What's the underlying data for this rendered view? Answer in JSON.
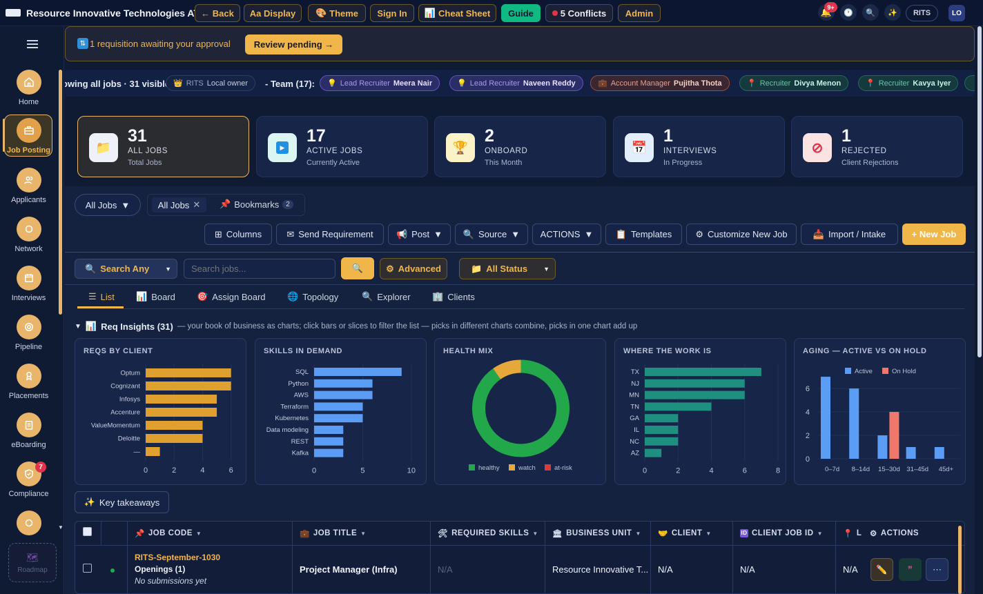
{
  "app": {
    "title": "Resource Innovative Technologies ATS"
  },
  "topbar": {
    "back": "← Back",
    "display": "Aa Display",
    "theme": "Theme",
    "signin": "Sign In",
    "cheatsheet": "Cheat Sheet",
    "guide": "Guide",
    "conflicts": "5 Conflicts",
    "admin": "Admin",
    "notif_badge": "9+",
    "org": "RITS",
    "avatar": "LO"
  },
  "sidebar": {
    "items": [
      {
        "label": "Home",
        "icon": "home-icon"
      },
      {
        "label": "Job Posting",
        "icon": "briefcase-icon",
        "active": true
      },
      {
        "label": "Applicants",
        "icon": "users-icon"
      },
      {
        "label": "Network",
        "icon": "circle-icon"
      },
      {
        "label": "Interviews",
        "icon": "calendar-icon"
      },
      {
        "label": "Pipeline",
        "icon": "target-icon"
      },
      {
        "label": "Placements",
        "icon": "award-icon"
      },
      {
        "label": "eBoarding",
        "icon": "clipboard-icon"
      },
      {
        "label": "Compliance",
        "icon": "shield-icon",
        "badge": "7"
      }
    ],
    "roadmap": "Roadmap"
  },
  "banner": {
    "text": "1 requisition awaiting your approval",
    "button": "Review pending →"
  },
  "team_strip": {
    "showing": "owing all jobs · 31 visible",
    "owner_org": "RITS",
    "owner_label": "Local owner",
    "team": "- Team (17):",
    "members": [
      {
        "role": "Lead Recruiter",
        "name": "Meera Nair"
      },
      {
        "role": "Lead Recruiter",
        "name": "Naveen Reddy"
      },
      {
        "role": "Account Manager",
        "name": "Pujitha Thota"
      },
      {
        "role": "Recruiter",
        "name": "Divya Menon"
      },
      {
        "role": "Recruiter",
        "name": "Kavya Iyer"
      }
    ]
  },
  "stats": [
    {
      "num": "31",
      "label": "ALL JOBS",
      "sub": "Total Jobs",
      "icon": "folder-icon"
    },
    {
      "num": "17",
      "label": "ACTIVE JOBS",
      "sub": "Currently Active",
      "icon": "play-icon"
    },
    {
      "num": "2",
      "label": "ONBOARD",
      "sub": "This Month",
      "icon": "trophy-icon"
    },
    {
      "num": "1",
      "label": "INTERVIEWS",
      "sub": "In Progress",
      "icon": "calendar-icon"
    },
    {
      "num": "1",
      "label": "REJECTED",
      "sub": "Client Rejections",
      "icon": "ban-icon"
    }
  ],
  "views": {
    "dropdown": "All Jobs",
    "tab_all": "All Jobs",
    "bookmarks": "Bookmarks",
    "bookmarks_count": "2"
  },
  "toolbar": {
    "columns": "Columns",
    "send_requirement": "Send Requirement",
    "post": "Post",
    "source": "Source",
    "actions": "ACTIONS",
    "templates": "Templates",
    "customize": "Customize New Job",
    "import": "Import / Intake",
    "new_job": "+ New Job"
  },
  "search": {
    "scope": "Search Any",
    "placeholder": "Search jobs...",
    "advanced": "Advanced",
    "status": "All Status"
  },
  "tabs": [
    "List",
    "Board",
    "Assign Board",
    "Topology",
    "Explorer",
    "Clients"
  ],
  "insights": {
    "title": "Req Insights (31)",
    "desc": "— your book of business as charts; click bars or slices to filter the list — picks in different charts combine, picks in one chart add up"
  },
  "chart_data": [
    {
      "type": "bar",
      "title": "REQS BY CLIENT",
      "orientation": "horizontal",
      "categories": [
        "Optum",
        "Cognizant",
        "Infosys",
        "Accenture",
        "ValueMomentum",
        "Deloitte",
        "—"
      ],
      "values": [
        6,
        6,
        5,
        5,
        4,
        4,
        1
      ],
      "xticks": [
        0,
        2,
        4,
        6
      ],
      "xlim": [
        0,
        6.5
      ],
      "color": "#e0a030"
    },
    {
      "type": "bar",
      "title": "SKILLS IN DEMAND",
      "orientation": "horizontal",
      "categories": [
        "SQL",
        "Python",
        "AWS",
        "Terraform",
        "Kubernetes",
        "Data modeling",
        "REST",
        "Kafka"
      ],
      "values": [
        9,
        6,
        6,
        5,
        5,
        3,
        3,
        3
      ],
      "xticks": [
        0,
        5,
        10
      ],
      "xlim": [
        0,
        11
      ],
      "color": "#5b9cf5"
    },
    {
      "type": "pie",
      "title": "HEALTH MIX",
      "categories": [
        "healthy",
        "watch",
        "at-risk"
      ],
      "values": [
        28,
        3,
        0
      ],
      "colors": [
        "#22a84a",
        "#e6a83a",
        "#d93a3a"
      ]
    },
    {
      "type": "bar",
      "title": "WHERE THE WORK IS",
      "orientation": "horizontal",
      "categories": [
        "TX",
        "NJ",
        "MN",
        "TN",
        "GA",
        "IL",
        "NC",
        "AZ"
      ],
      "values": [
        7,
        6,
        6,
        4,
        2,
        2,
        2,
        1
      ],
      "xticks": [
        0,
        2,
        4,
        6,
        8
      ],
      "xlim": [
        0,
        8
      ],
      "color": "#1f8f7f"
    },
    {
      "type": "bar",
      "title": "AGING — ACTIVE VS ON HOLD",
      "categories": [
        "0–7d",
        "8–14d",
        "15–30d",
        "31–45d",
        "45d+"
      ],
      "series": [
        {
          "name": "Active",
          "values": [
            7,
            6,
            2,
            1,
            1
          ],
          "color": "#5b9cf5"
        },
        {
          "name": "On Hold",
          "values": [
            0,
            0,
            4,
            0,
            0
          ],
          "color": "#f0786a"
        }
      ],
      "yticks": [
        0,
        2,
        4,
        6
      ],
      "ylim": [
        0,
        7.3
      ],
      "legend": "top"
    }
  ],
  "takeaways": "Key takeaways",
  "table": {
    "headers": [
      "JOB CODE",
      "JOB TITLE",
      "REQUIRED SKILLS",
      "BUSINESS UNIT",
      "CLIENT",
      "CLIENT JOB ID",
      "L",
      "ACTIONS"
    ],
    "rows": [
      {
        "code": "RITS-September-1030",
        "openings": "Openings (1)",
        "submissions": "No submissions yet",
        "title": "Project Manager (Infra)",
        "skills": "N/A",
        "unit": "Resource Innovative T...",
        "client": "N/A",
        "client_job_id": "N/A",
        "loc": "N/A"
      }
    ]
  }
}
